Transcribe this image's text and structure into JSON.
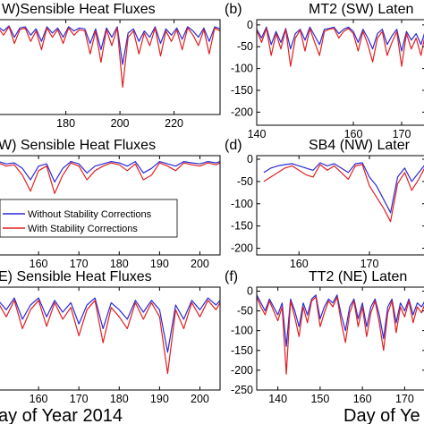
{
  "colors": {
    "without": "#2b2bd6",
    "with": "#e02020"
  },
  "legend": {
    "without": "Without Stability Corrections",
    "with": "With Stability Corrections"
  },
  "xlabels": {
    "left": "ay of Year 2014",
    "right": "Day of Ye"
  },
  "chart_data": [
    {
      "id": "a",
      "type": "line",
      "title": "W)Sensible Heat Fluxes",
      "xlim": [
        155,
        237
      ],
      "ylim": [
        -215,
        12
      ],
      "xticks": [
        180,
        200,
        220
      ],
      "yticks": [],
      "series": [
        {
          "name": "Without Stability Corrections",
          "x": [
            155,
            157,
            159,
            161,
            163,
            165,
            167,
            169,
            171,
            173,
            175,
            177,
            179,
            181,
            183,
            185,
            187,
            189,
            191,
            193,
            195,
            197,
            199,
            201,
            203,
            205,
            207,
            209,
            211,
            213,
            215,
            217,
            219,
            221,
            223,
            225,
            227,
            229,
            231,
            233,
            235,
            237
          ],
          "y": [
            -5,
            -15,
            -3,
            -30,
            -8,
            -5,
            -25,
            -10,
            -40,
            -5,
            -20,
            -8,
            -30,
            -5,
            -15,
            -8,
            -10,
            -45,
            -10,
            -60,
            -8,
            -30,
            -5,
            -95,
            -20,
            -10,
            -40,
            -15,
            -30,
            -5,
            -45,
            -10,
            -25,
            -8,
            -35,
            -5,
            -15,
            -30,
            -8,
            -40,
            -5,
            -10
          ]
        },
        {
          "name": "With Stability Corrections",
          "x": [
            155,
            157,
            159,
            161,
            163,
            165,
            167,
            169,
            171,
            173,
            175,
            177,
            179,
            181,
            183,
            185,
            187,
            189,
            191,
            193,
            195,
            197,
            199,
            201,
            203,
            205,
            207,
            209,
            211,
            213,
            215,
            217,
            219,
            221,
            223,
            225,
            227,
            229,
            231,
            233,
            235,
            237
          ],
          "y": [
            -8,
            -25,
            -5,
            -45,
            -12,
            -8,
            -40,
            -15,
            -60,
            -8,
            -30,
            -12,
            -45,
            -8,
            -25,
            -12,
            -15,
            -70,
            -15,
            -90,
            -12,
            -50,
            -8,
            -150,
            -30,
            -15,
            -70,
            -20,
            -50,
            -8,
            -75,
            -15,
            -40,
            -12,
            -60,
            -8,
            -25,
            -50,
            -12,
            -70,
            -8,
            -15
          ]
        }
      ]
    },
    {
      "id": "b",
      "type": "line",
      "title": "MT2 (SW) Laten",
      "label": "(b)",
      "xlim": [
        140,
        175
      ],
      "ylim": [
        -230,
        12
      ],
      "xticks": [
        140,
        160,
        170
      ],
      "yticks": [
        0,
        -50,
        -100,
        -150,
        -200
      ],
      "series": [
        {
          "name": "Without Stability Corrections",
          "x": [
            140,
            141,
            142,
            143,
            144,
            145,
            146,
            147,
            148,
            149,
            150,
            151,
            152,
            153,
            154,
            155,
            156,
            157,
            158,
            159,
            160,
            161,
            162,
            163,
            164,
            165,
            166,
            167,
            168,
            169,
            170,
            171,
            172,
            173,
            174,
            175
          ],
          "y": [
            -10,
            -30,
            -5,
            -45,
            -15,
            -40,
            -8,
            -55,
            -20,
            -10,
            -35,
            -5,
            -25,
            -45,
            -10,
            -8,
            -5,
            -20,
            -10,
            -5,
            -15,
            -40,
            -10,
            -30,
            -55,
            -20,
            -10,
            -45,
            -25,
            -10,
            -60,
            -15,
            -35,
            -20,
            -45,
            -10
          ]
        },
        {
          "name": "With Stability Corrections",
          "x": [
            140,
            141,
            142,
            143,
            144,
            145,
            146,
            147,
            148,
            149,
            150,
            151,
            152,
            153,
            154,
            155,
            156,
            157,
            158,
            159,
            160,
            161,
            162,
            163,
            164,
            165,
            166,
            167,
            168,
            169,
            170,
            171,
            172,
            173,
            174,
            175
          ],
          "y": [
            -12,
            -40,
            -8,
            -70,
            -20,
            -55,
            -10,
            -95,
            -30,
            -12,
            -60,
            -8,
            -40,
            -70,
            -15,
            -10,
            -8,
            -30,
            -15,
            -8,
            -20,
            -60,
            -15,
            -45,
            -85,
            -30,
            -15,
            -70,
            -40,
            -15,
            -95,
            -20,
            -55,
            -30,
            -70,
            -15
          ]
        }
      ]
    },
    {
      "id": "c",
      "type": "line",
      "title": "W) Sensible Heat Fluxes",
      "xlim": [
        150,
        205
      ],
      "ylim": [
        -210,
        8
      ],
      "xticks": [
        160,
        170,
        180,
        190,
        200
      ],
      "yticks": [],
      "series": [
        {
          "name": "Without Stability Corrections",
          "x": [
            150,
            152,
            154,
            156,
            158,
            160,
            162,
            164,
            166,
            168,
            170,
            172,
            174,
            176,
            178,
            180,
            182,
            184,
            186,
            188,
            190,
            192,
            194,
            196,
            198,
            200,
            202,
            204,
            205
          ],
          "y": [
            -5,
            -10,
            -8,
            -20,
            -45,
            -15,
            -10,
            -50,
            -20,
            -5,
            -10,
            -30,
            -15,
            -10,
            -5,
            -8,
            -15,
            -5,
            -30,
            -20,
            -5,
            -10,
            -15,
            -5,
            -8,
            -10,
            -5,
            -8,
            -5
          ]
        },
        {
          "name": "With Stability Corrections",
          "x": [
            150,
            152,
            154,
            156,
            158,
            160,
            162,
            164,
            166,
            168,
            170,
            172,
            174,
            176,
            178,
            180,
            182,
            184,
            186,
            188,
            190,
            192,
            194,
            196,
            198,
            200,
            202,
            204,
            205
          ],
          "y": [
            -8,
            -15,
            -12,
            -35,
            -70,
            -25,
            -15,
            -75,
            -35,
            -8,
            -15,
            -45,
            -25,
            -15,
            -8,
            -12,
            -25,
            -10,
            -45,
            -35,
            -8,
            -15,
            -25,
            -8,
            -12,
            -15,
            -8,
            -12,
            -8
          ]
        }
      ]
    },
    {
      "id": "d",
      "type": "line",
      "title": "SB4 (NW) Later",
      "label": "(d)",
      "xlim": [
        154,
        178
      ],
      "ylim": [
        -215,
        8
      ],
      "xticks": [
        160,
        170
      ],
      "yticks": [
        0,
        -50,
        -100,
        -150,
        -200
      ],
      "series": [
        {
          "name": "Without Stability Corrections",
          "x": [
            155,
            156,
            157,
            158,
            159,
            160,
            161,
            162,
            163,
            164,
            165,
            166,
            167,
            168,
            169,
            170,
            171,
            172,
            173,
            174,
            175,
            176,
            177,
            178
          ],
          "y": [
            -30,
            -20,
            -15,
            -12,
            -10,
            -15,
            -20,
            -25,
            -8,
            -15,
            -10,
            -20,
            -30,
            -10,
            -8,
            -40,
            -60,
            -90,
            -120,
            -40,
            -20,
            -50,
            -30,
            -10
          ]
        },
        {
          "name": "With Stability Corrections",
          "x": [
            155,
            156,
            157,
            158,
            159,
            160,
            161,
            162,
            163,
            164,
            165,
            166,
            167,
            168,
            169,
            170,
            171,
            172,
            173,
            174,
            175,
            176,
            177,
            178
          ],
          "y": [
            -50,
            -40,
            -30,
            -20,
            -15,
            -25,
            -35,
            -40,
            -12,
            -25,
            -15,
            -30,
            -45,
            -15,
            -12,
            -60,
            -85,
            -110,
            -140,
            -55,
            -30,
            -70,
            -45,
            -15
          ]
        }
      ]
    },
    {
      "id": "e",
      "type": "line",
      "title": "E) Sensible Heat Fluxes",
      "xlim": [
        150,
        205
      ],
      "ylim": [
        -210,
        8
      ],
      "xticks": [
        160,
        170,
        180,
        190,
        200
      ],
      "yticks": [],
      "series": [
        {
          "name": "Without Stability Corrections",
          "x": [
            150,
            152,
            154,
            156,
            158,
            160,
            162,
            164,
            166,
            168,
            170,
            172,
            174,
            176,
            178,
            180,
            182,
            184,
            186,
            188,
            190,
            192,
            194,
            196,
            198,
            200,
            202,
            204,
            205
          ],
          "y": [
            -20,
            -40,
            -15,
            -60,
            -30,
            -15,
            -55,
            -20,
            -45,
            -25,
            -70,
            -30,
            -15,
            -80,
            -25,
            -40,
            -60,
            -20,
            -45,
            -20,
            -40,
            -130,
            -30,
            -60,
            -20,
            -40,
            -15,
            -30,
            -20
          ]
        },
        {
          "name": "With Stability Corrections",
          "x": [
            150,
            152,
            154,
            156,
            158,
            160,
            162,
            164,
            166,
            168,
            170,
            172,
            174,
            176,
            178,
            180,
            182,
            184,
            186,
            188,
            190,
            192,
            194,
            196,
            198,
            200,
            202,
            204,
            205
          ],
          "y": [
            -25,
            -55,
            -20,
            -80,
            -40,
            -20,
            -75,
            -25,
            -60,
            -35,
            -95,
            -40,
            -20,
            -110,
            -35,
            -55,
            -80,
            -25,
            -60,
            -25,
            -55,
            -175,
            -40,
            -80,
            -25,
            -55,
            -20,
            -40,
            -25
          ]
        }
      ]
    },
    {
      "id": "f",
      "type": "line",
      "title": "TT2 (NE) Laten",
      "label": "(f)",
      "xlim": [
        135,
        175
      ],
      "ylim": [
        -250,
        10
      ],
      "xticks": [
        140,
        150,
        160,
        170
      ],
      "yticks": [
        0,
        -50,
        -100,
        -150,
        -200,
        -250
      ],
      "series": [
        {
          "name": "Without Stability Corrections",
          "x": [
            135,
            136,
            137,
            138,
            139,
            140,
            141,
            142,
            143,
            144,
            145,
            146,
            147,
            148,
            149,
            150,
            151,
            152,
            153,
            154,
            155,
            156,
            157,
            158,
            159,
            160,
            161,
            162,
            163,
            164,
            165,
            166,
            167,
            168,
            169,
            170,
            171,
            172,
            173,
            174,
            175
          ],
          "y": [
            -10,
            -30,
            -50,
            -20,
            -40,
            -60,
            -30,
            -140,
            -20,
            -50,
            -90,
            -30,
            -60,
            -20,
            -10,
            -70,
            -40,
            -20,
            -30,
            -10,
            -60,
            -100,
            -40,
            -20,
            -70,
            -30,
            -90,
            -40,
            -20,
            -60,
            -120,
            -40,
            -20,
            -80,
            -30,
            -50,
            -20,
            -60,
            -30,
            -40,
            -20
          ]
        },
        {
          "name": "With Stability Corrections",
          "x": [
            135,
            136,
            137,
            138,
            139,
            140,
            141,
            142,
            143,
            144,
            145,
            146,
            147,
            148,
            149,
            150,
            151,
            152,
            153,
            154,
            155,
            156,
            157,
            158,
            159,
            160,
            161,
            162,
            163,
            164,
            165,
            166,
            167,
            168,
            169,
            170,
            171,
            172,
            173,
            174,
            175
          ],
          "y": [
            -15,
            -40,
            -60,
            -25,
            -50,
            -75,
            -40,
            -210,
            -25,
            -65,
            -115,
            -40,
            -80,
            -25,
            -15,
            -90,
            -55,
            -25,
            -40,
            -15,
            -80,
            -130,
            -55,
            -25,
            -90,
            -40,
            -115,
            -55,
            -25,
            -80,
            -150,
            -55,
            -25,
            -105,
            -40,
            -65,
            -25,
            -80,
            -40,
            -55,
            -25
          ]
        }
      ]
    }
  ]
}
